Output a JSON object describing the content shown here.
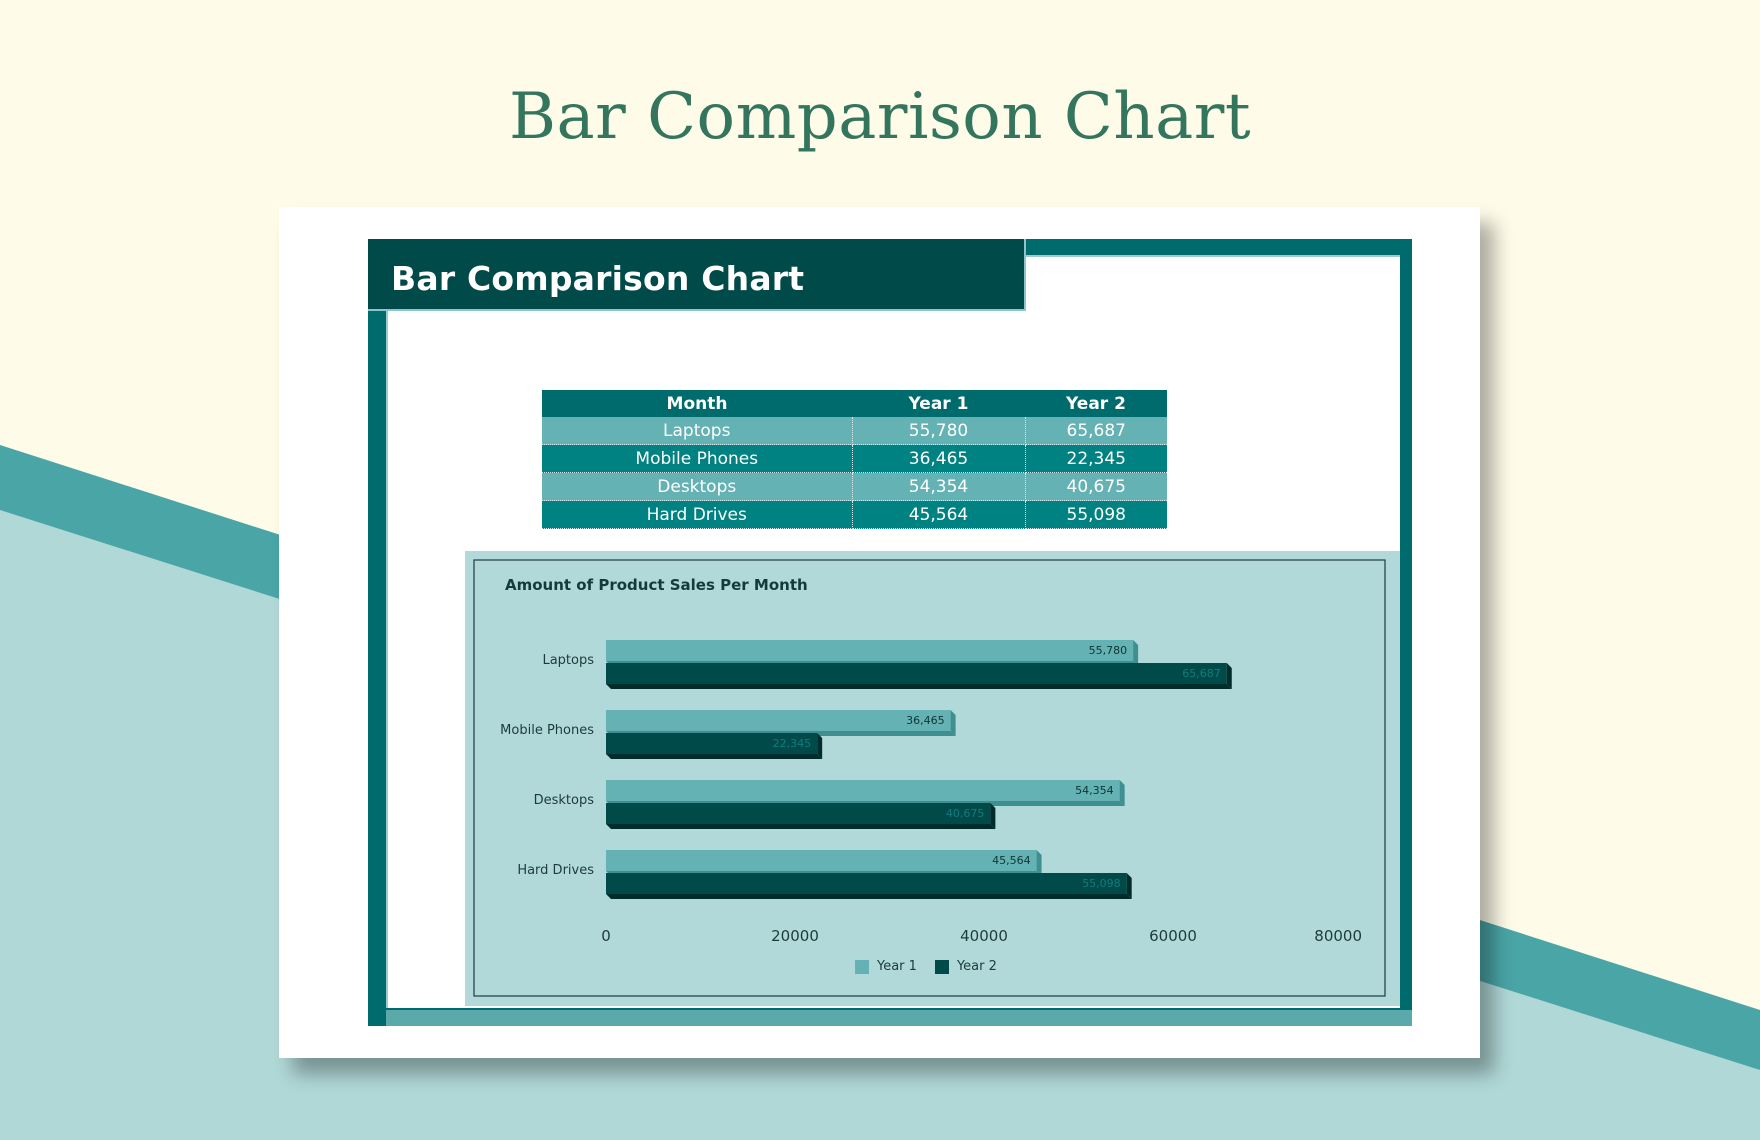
{
  "page_title": "Bar Comparison Chart",
  "sheet_title": "Bar Comparison Chart",
  "colors": {
    "background": "#fefbe9",
    "title_green": "#33765d",
    "teal_dark": "#004a4a",
    "teal_frame": "#006b6c",
    "year1": "#64b2b3",
    "year2": "#004a4a",
    "chart_bg": "#b2d9d9"
  },
  "table": {
    "headers": [
      "Month",
      "Year 1",
      "Year 2"
    ],
    "rows": [
      [
        "Laptops",
        "55,780",
        "65,687"
      ],
      [
        "Mobile Phones",
        "36,465",
        "22,345"
      ],
      [
        "Desktops",
        "54,354",
        "40,675"
      ],
      [
        "Hard Drives",
        "45,564",
        "55,098"
      ]
    ]
  },
  "chart_data": {
    "type": "bar",
    "orientation": "horizontal",
    "title": "Amount of Product Sales Per Month",
    "categories": [
      "Laptops",
      "Mobile Phones",
      "Desktops",
      "Hard Drives"
    ],
    "series": [
      {
        "name": "Year 1",
        "values": [
          55780,
          36465,
          54354,
          45564
        ],
        "labels": [
          "55,780",
          "36,465",
          "54,354",
          "45,564"
        ]
      },
      {
        "name": "Year 2",
        "values": [
          65687,
          22345,
          40675,
          55098
        ],
        "labels": [
          "65,687",
          "22,345",
          "40,675",
          "55,098"
        ]
      }
    ],
    "xlim": [
      0,
      80000
    ],
    "xticks": [
      "0",
      "20000",
      "40000",
      "60000",
      "80000"
    ],
    "xlabel": "",
    "ylabel": "",
    "grid": false,
    "legend": "bottom"
  }
}
